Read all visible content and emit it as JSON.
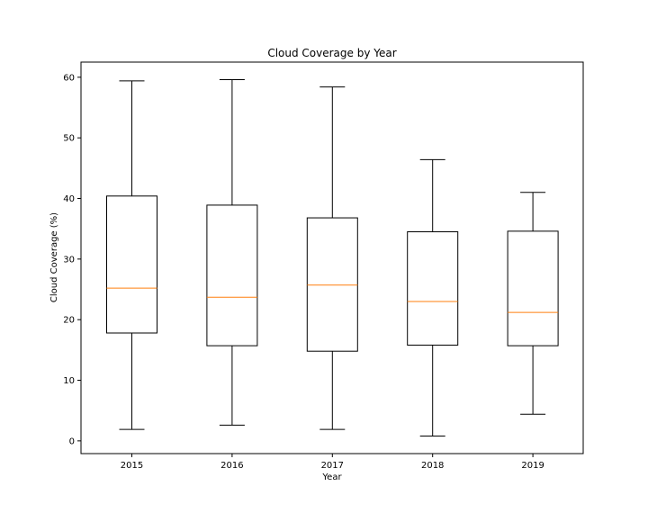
{
  "chart_data": {
    "type": "box",
    "title": "Cloud Coverage by Year",
    "xlabel": "Year",
    "ylabel": "Cloud Coverage (%)",
    "categories": [
      "2015",
      "2016",
      "2017",
      "2018",
      "2019"
    ],
    "boxes": [
      {
        "category": "2015",
        "min": 1.9,
        "q1": 17.8,
        "median": 25.2,
        "q3": 40.4,
        "max": 59.4
      },
      {
        "category": "2016",
        "min": 2.6,
        "q1": 15.7,
        "median": 23.7,
        "q3": 38.9,
        "max": 59.6
      },
      {
        "category": "2017",
        "min": 1.9,
        "q1": 14.8,
        "median": 25.7,
        "q3": 36.8,
        "max": 58.4
      },
      {
        "category": "2018",
        "min": 0.8,
        "q1": 15.8,
        "median": 23.0,
        "q3": 34.5,
        "max": 46.4
      },
      {
        "category": "2019",
        "min": 4.4,
        "q1": 15.7,
        "median": 21.2,
        "q3": 34.6,
        "max": 41.0
      }
    ],
    "yticks": [
      0,
      10,
      20,
      30,
      40,
      50,
      60
    ],
    "ylim": [
      -2.1,
      62.5
    ],
    "grid": false,
    "colors": {
      "box": "#000000",
      "whisker": "#000000",
      "median": "#ff7f0e"
    }
  }
}
